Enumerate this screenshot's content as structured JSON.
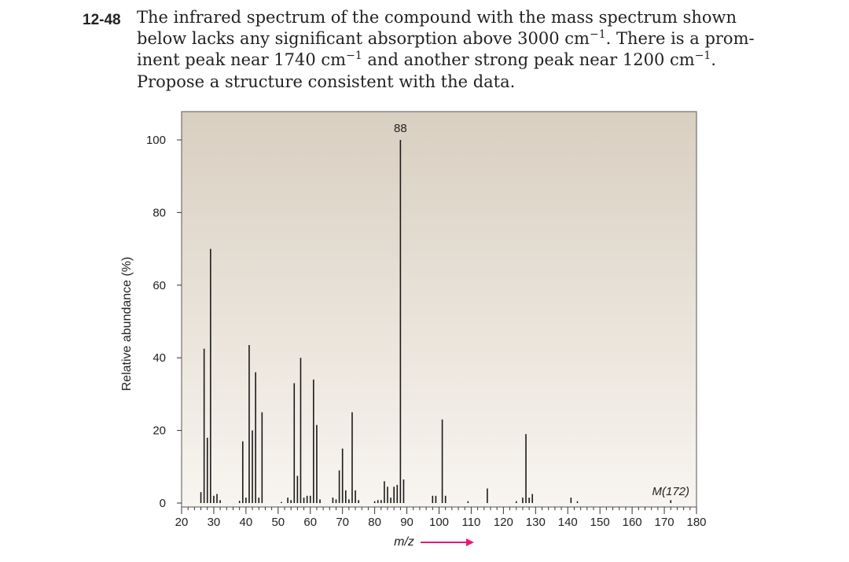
{
  "problem": {
    "number": "12-48",
    "lines": [
      {
        "before": "The infrared spectrum of the compound with the mass spectrum shown",
        "sup": "",
        "after": ""
      },
      {
        "before": "below lacks any significant absorption above 3000 cm",
        "sup": "−1",
        "after": ". There is a prom-"
      },
      {
        "before": "inent peak near 1740 cm",
        "sup": "−1",
        "after": " and another strong peak near 1200 cm",
        "sup2": "−1",
        "after2": "."
      },
      {
        "before": "Propose a structure consistent with the data.",
        "sup": "",
        "after": ""
      }
    ]
  },
  "chart_data": {
    "type": "bar",
    "title": "",
    "xlabel": "m/z",
    "ylabel": "Relative abundance (%)",
    "xlim": [
      20,
      180
    ],
    "ylim": [
      0,
      100
    ],
    "x_ticks": [
      20,
      30,
      40,
      50,
      60,
      70,
      80,
      90,
      100,
      110,
      120,
      130,
      140,
      150,
      160,
      170,
      180
    ],
    "y_ticks": [
      0,
      20,
      40,
      60,
      80,
      100
    ],
    "peak_label": "88",
    "molecular_ion_label": "M(172)",
    "background_gradient": [
      "#d9cfc1",
      "#f8f5f0"
    ],
    "arrow_color": "#e6197a",
    "series": [
      {
        "values": [
          {
            "x": 26,
            "y": 3
          },
          {
            "x": 27,
            "y": 42.5
          },
          {
            "x": 28,
            "y": 18
          },
          {
            "x": 29,
            "y": 70
          },
          {
            "x": 30,
            "y": 2
          },
          {
            "x": 31,
            "y": 2.5
          },
          {
            "x": 32,
            "y": 0.8
          },
          {
            "x": 38,
            "y": 0.6
          },
          {
            "x": 39,
            "y": 17
          },
          {
            "x": 40,
            "y": 1.5
          },
          {
            "x": 41,
            "y": 43.5
          },
          {
            "x": 42,
            "y": 20
          },
          {
            "x": 43,
            "y": 36
          },
          {
            "x": 44,
            "y": 1.5
          },
          {
            "x": 45,
            "y": 25
          },
          {
            "x": 51,
            "y": 0.3
          },
          {
            "x": 53,
            "y": 1.5
          },
          {
            "x": 54,
            "y": 0.8
          },
          {
            "x": 55,
            "y": 33
          },
          {
            "x": 56,
            "y": 7.5
          },
          {
            "x": 57,
            "y": 40
          },
          {
            "x": 58,
            "y": 1.5
          },
          {
            "x": 59,
            "y": 2
          },
          {
            "x": 60,
            "y": 2
          },
          {
            "x": 61,
            "y": 34
          },
          {
            "x": 62,
            "y": 21.5
          },
          {
            "x": 63,
            "y": 1
          },
          {
            "x": 67,
            "y": 1.5
          },
          {
            "x": 68,
            "y": 1
          },
          {
            "x": 69,
            "y": 9
          },
          {
            "x": 70,
            "y": 15
          },
          {
            "x": 71,
            "y": 3.5
          },
          {
            "x": 72,
            "y": 1
          },
          {
            "x": 73,
            "y": 25
          },
          {
            "x": 74,
            "y": 3.5
          },
          {
            "x": 75,
            "y": 0.8
          },
          {
            "x": 80,
            "y": 0.5
          },
          {
            "x": 81,
            "y": 0.8
          },
          {
            "x": 82,
            "y": 0.8
          },
          {
            "x": 83,
            "y": 6
          },
          {
            "x": 84,
            "y": 4.5
          },
          {
            "x": 85,
            "y": 1.5
          },
          {
            "x": 86,
            "y": 4.5
          },
          {
            "x": 87,
            "y": 5
          },
          {
            "x": 88,
            "y": 100
          },
          {
            "x": 89,
            "y": 6.5
          },
          {
            "x": 98,
            "y": 2
          },
          {
            "x": 99,
            "y": 2
          },
          {
            "x": 101,
            "y": 23
          },
          {
            "x": 102,
            "y": 2
          },
          {
            "x": 109,
            "y": 0.5
          },
          {
            "x": 115,
            "y": 4
          },
          {
            "x": 124,
            "y": 0.5
          },
          {
            "x": 126,
            "y": 1.5
          },
          {
            "x": 127,
            "y": 19
          },
          {
            "x": 128,
            "y": 1.5
          },
          {
            "x": 129,
            "y": 2.5
          },
          {
            "x": 141,
            "y": 1.5
          },
          {
            "x": 143,
            "y": 0.5
          },
          {
            "x": 172,
            "y": 0.8
          }
        ]
      }
    ]
  }
}
